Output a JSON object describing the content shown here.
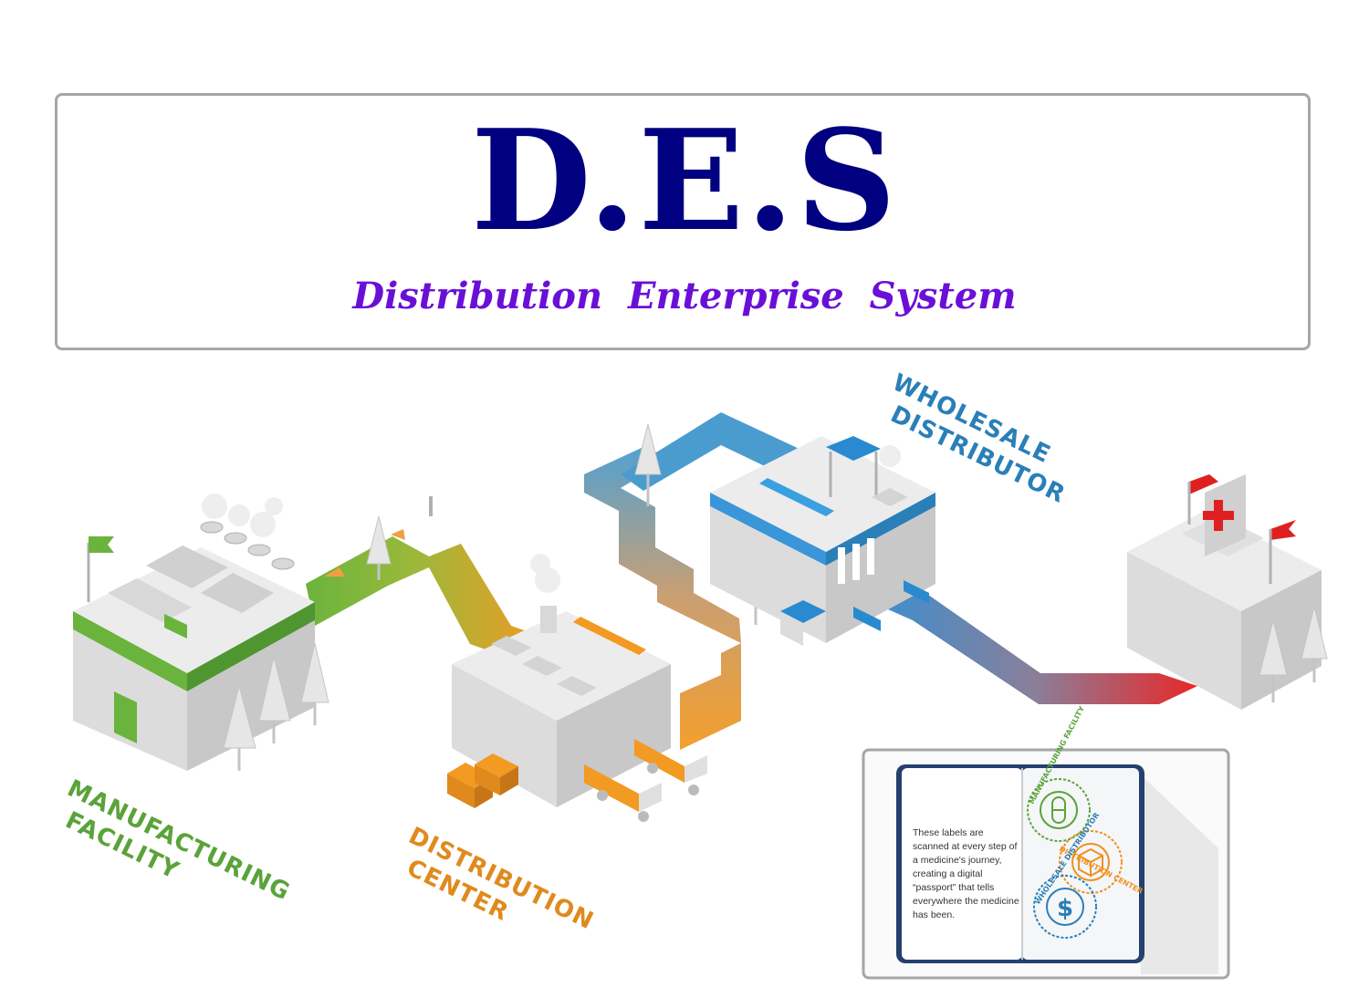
{
  "header": {
    "title": "D.E.S",
    "subtitle": "Distribution Enterprise System"
  },
  "stages": [
    {
      "id": "manufacturing",
      "line1": "MANUFACTURING",
      "line2": "FACILITY",
      "color": "#5aa33a"
    },
    {
      "id": "distribution",
      "line1": "DISTRIBUTION",
      "line2": "CENTER",
      "color": "#e08a1e"
    },
    {
      "id": "wholesale",
      "line1": "WHOLESALE",
      "line2": "DISTRIBUTOR",
      "color": "#2a7fb8"
    }
  ],
  "inset": {
    "text": "These labels are scanned at every step of a medicine's journey, creating a digital “passport” that tells everywhere the medicine has been.",
    "stamps": [
      {
        "label": "MANUFACTURING FACILITY",
        "icon": "pill-icon",
        "color": "#5aa33a"
      },
      {
        "label": "DISTRIBUTION CENTER",
        "icon": "box-icon",
        "color": "#f0901e"
      },
      {
        "label": "WHOLESALE DISTRIBUTOR",
        "icon": "dollar-icon",
        "color": "#2a7fb8"
      }
    ]
  },
  "colors": {
    "title": "#000080",
    "subtitle": "#6a0fd8",
    "manufacturing": "#5aa33a",
    "distribution": "#f0901e",
    "wholesale": "#2a7fb8",
    "hospital_red": "#e02020"
  }
}
